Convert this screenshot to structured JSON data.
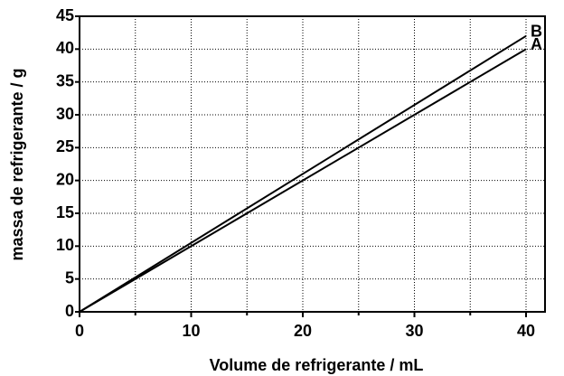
{
  "chart_data": {
    "type": "line",
    "x_label": "Volume de refrigerante / mL",
    "y_label": "massa de refrigerante / g",
    "x": [
      0,
      40
    ],
    "series": [
      {
        "name": "A",
        "color": "#000000",
        "values": [
          0,
          40
        ]
      },
      {
        "name": "B",
        "color": "#000000",
        "values": [
          0,
          42
        ]
      }
    ],
    "xlim": [
      0,
      41.7
    ],
    "xticks": [
      0,
      10,
      20,
      30,
      40
    ],
    "xminorticks": [
      5,
      15,
      25,
      35
    ],
    "ylim": [
      0,
      45
    ],
    "yticks": [
      0,
      5,
      10,
      15,
      20,
      25,
      30,
      35,
      40,
      45
    ],
    "grid": true
  }
}
